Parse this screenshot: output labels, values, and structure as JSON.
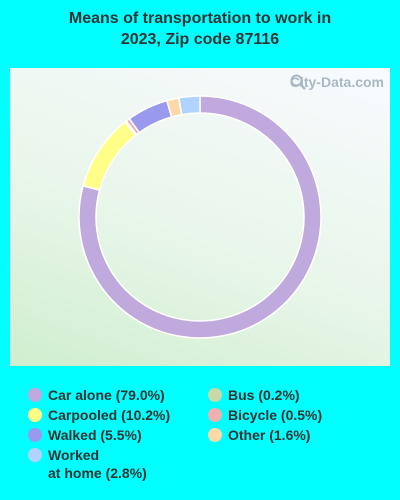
{
  "title_lines": [
    "Means of transportation to work in",
    "2023, Zip code 87116"
  ],
  "watermark": {
    "text": "City-Data.com",
    "icon": "magnifier-icon"
  },
  "chart_data": {
    "type": "pie",
    "variant": "donut",
    "title": "Means of transportation to work in 2023, Zip code 87116",
    "slices": [
      {
        "label": "Car alone",
        "value": 79.0,
        "display": "Car alone (79.0%)",
        "color": "#c0a9dc"
      },
      {
        "label": "Carpooled",
        "value": 10.2,
        "display": "Carpooled (10.2%)",
        "color": "#ffff88"
      },
      {
        "label": "Bus",
        "value": 0.2,
        "display": "Bus (0.2%)",
        "color": "#c8d8a8"
      },
      {
        "label": "Bicycle",
        "value": 0.5,
        "display": "Bicycle (0.5%)",
        "color": "#f0b0b0"
      },
      {
        "label": "Walked",
        "value": 5.5,
        "display": "Walked (5.5%)",
        "color": "#9999ee"
      },
      {
        "label": "Other",
        "value": 1.6,
        "display": "Other (1.6%)",
        "color": "#ffd8a8"
      },
      {
        "label": "Worked at home",
        "value": 2.8,
        "display": "Worked\nat home (2.8%)",
        "color": "#b0d4ff"
      }
    ],
    "legend_placement": "bottom",
    "legend_order": [
      [
        "Car alone",
        "Carpooled",
        "Walked",
        "Worked at home"
      ],
      [
        "Bus",
        "Bicycle",
        "Other"
      ]
    ]
  }
}
